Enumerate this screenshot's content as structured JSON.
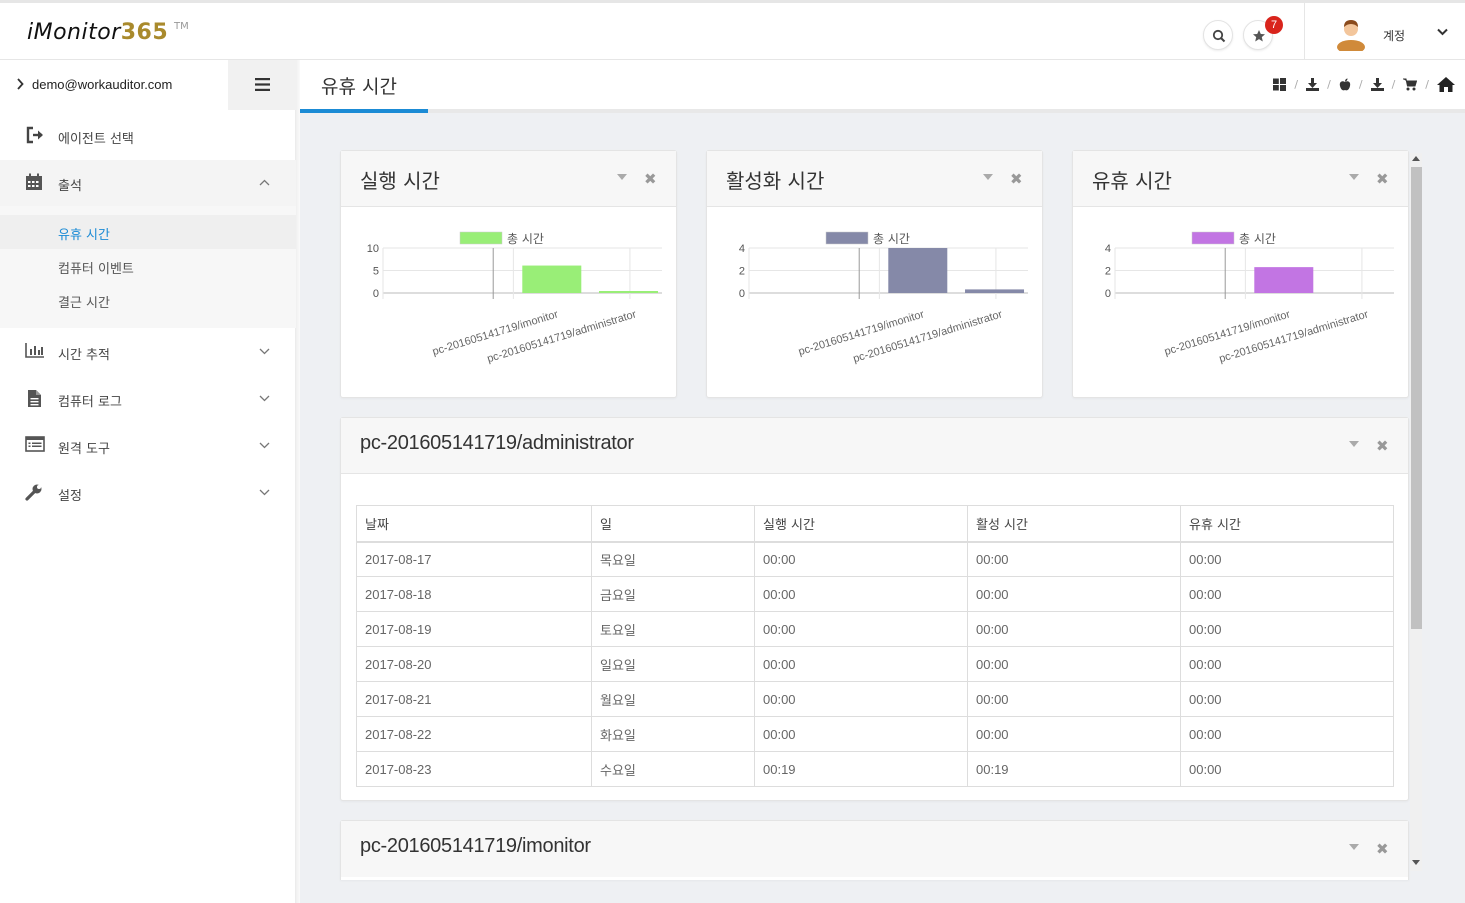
{
  "app": {
    "logo_text": "iMonitor",
    "logo_number": "365",
    "logo_tm": "TM",
    "notification_count": "7",
    "account_label": "계정"
  },
  "sidebar": {
    "user_email": "demo@workauditor.com",
    "items": [
      {
        "label": "에이전트 선택",
        "icon": "sign-out-icon"
      },
      {
        "label": "출석",
        "icon": "calendar-icon"
      },
      {
        "label": "시간 추적",
        "icon": "bar-chart-icon"
      },
      {
        "label": "컴퓨터 로그",
        "icon": "file-icon"
      },
      {
        "label": "원격 도구",
        "icon": "list-icon"
      },
      {
        "label": "설정",
        "icon": "wrench-icon"
      }
    ],
    "subitems": [
      {
        "label": "유휴 시간",
        "active": true
      },
      {
        "label": "컴퓨터 이벤트",
        "active": false
      },
      {
        "label": "결근 시간",
        "active": false
      }
    ]
  },
  "page": {
    "title": "유휴 시간"
  },
  "charts_meta": {
    "legend_label": "총 시간",
    "categories": [
      "pc-201605141719/imonitor",
      "pc-201605141719/administrator"
    ]
  },
  "chart_data": [
    {
      "type": "bar",
      "title": "실행 시간",
      "categories": [
        "pc-201605141719/imonitor",
        "pc-201605141719/administrator"
      ],
      "series": [
        {
          "name": "총 시간",
          "values": [
            6.1,
            0.32
          ]
        }
      ],
      "ylim": [
        0,
        10
      ],
      "yticks": [
        0,
        5,
        10
      ],
      "color": "#99ee77"
    },
    {
      "type": "bar",
      "title": "활성화 시간",
      "categories": [
        "pc-201605141719/imonitor",
        "pc-201605141719/administrator"
      ],
      "series": [
        {
          "name": "총 시간",
          "values": [
            4,
            0.32
          ]
        }
      ],
      "ylim": [
        0,
        4
      ],
      "yticks": [
        0,
        2,
        4
      ],
      "color": "#8589a8"
    },
    {
      "type": "bar",
      "title": "유휴 시간",
      "categories": [
        "pc-201605141719/imonitor",
        "pc-201605141719/administrator"
      ],
      "series": [
        {
          "name": "총 시간",
          "values": [
            2.3,
            0
          ]
        }
      ],
      "ylim": [
        0,
        4
      ],
      "yticks": [
        0,
        2,
        4
      ],
      "color": "#c275e3"
    }
  ],
  "table_panel": {
    "title": "pc-201605141719/administrator",
    "headers": [
      "날짜",
      "일",
      "실행 시간",
      "활성 시간",
      "유휴 시간"
    ],
    "rows": [
      [
        "2017-08-17",
        "목요일",
        "00:00",
        "00:00",
        "00:00"
      ],
      [
        "2017-08-18",
        "금요일",
        "00:00",
        "00:00",
        "00:00"
      ],
      [
        "2017-08-19",
        "토요일",
        "00:00",
        "00:00",
        "00:00"
      ],
      [
        "2017-08-20",
        "일요일",
        "00:00",
        "00:00",
        "00:00"
      ],
      [
        "2017-08-21",
        "월요일",
        "00:00",
        "00:00",
        "00:00"
      ],
      [
        "2017-08-22",
        "화요일",
        "00:00",
        "00:00",
        "00:00"
      ],
      [
        "2017-08-23",
        "수요일",
        "00:19",
        "00:19",
        "00:00"
      ]
    ]
  },
  "second_panel": {
    "title": "pc-201605141719/imonitor"
  }
}
